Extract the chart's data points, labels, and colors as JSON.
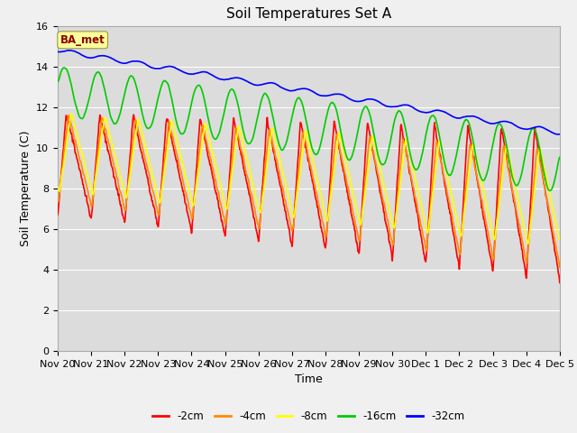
{
  "title": "Soil Temperatures Set A",
  "xlabel": "Time",
  "ylabel": "Soil Temperature (C)",
  "ylim": [
    0,
    16
  ],
  "yticks": [
    0,
    2,
    4,
    6,
    8,
    10,
    12,
    14,
    16
  ],
  "xlim_days": [
    0,
    15
  ],
  "xtick_labels": [
    "Nov 20",
    "Nov 21",
    "Nov 22",
    "Nov 23",
    "Nov 24",
    "Nov 25",
    "Nov 26",
    "Nov 27",
    "Nov 28",
    "Nov 29",
    "Nov 30",
    "Dec 1",
    "Dec 2",
    "Dec 3",
    "Dec 4",
    "Dec 5"
  ],
  "series": {
    "-2cm": {
      "color": "#ff0000",
      "lw": 1.2
    },
    "-4cm": {
      "color": "#ff8c00",
      "lw": 1.2
    },
    "-8cm": {
      "color": "#ffff00",
      "lw": 1.2
    },
    "-16cm": {
      "color": "#00cc00",
      "lw": 1.2
    },
    "-32cm": {
      "color": "#0000ff",
      "lw": 1.2
    }
  },
  "legend_label": "BA_met",
  "legend_text_color": "#8b0000",
  "legend_box_color": "#ffff99",
  "background_color": "#dcdcdc",
  "fig_bg_color": "#f0f0f0",
  "title_fontsize": 11,
  "axis_label_fontsize": 9,
  "tick_fontsize": 8
}
